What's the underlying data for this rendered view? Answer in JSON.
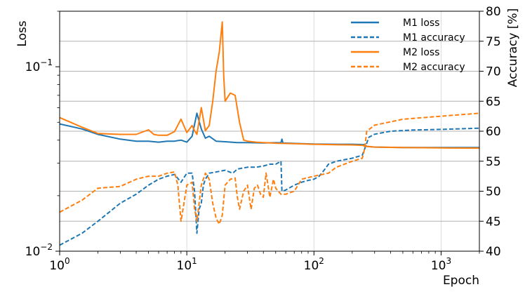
{
  "chart_data": {
    "type": "line",
    "xlabel": "Epoch",
    "ylabel_left": "Loss",
    "ylabel_right": "Accuracy [%]",
    "x_scale": "log",
    "y_left_scale": "log",
    "xlim": [
      1,
      2000
    ],
    "ylim_left": [
      0.01,
      0.2
    ],
    "ylim_right": [
      40,
      80
    ],
    "x_ticks": [
      {
        "value": 1,
        "base": "10",
        "exp": "0"
      },
      {
        "value": 10,
        "base": "10",
        "exp": "1"
      },
      {
        "value": 100,
        "base": "10",
        "exp": "2"
      },
      {
        "value": 1000,
        "base": "10",
        "exp": "3"
      }
    ],
    "y_left_ticks": [
      {
        "value": 0.01,
        "base": "10",
        "exp": "−2"
      },
      {
        "value": 0.1,
        "base": "10",
        "exp": "−1"
      }
    ],
    "y_right_ticks": [
      "40",
      "45",
      "50",
      "55",
      "60",
      "65",
      "70",
      "75",
      "80"
    ],
    "grid": true,
    "legend_position": "top-right",
    "colors": {
      "M1": "#1f77b4",
      "M2": "#ff7f0e"
    },
    "series": [
      {
        "name": "M1 loss",
        "axis": "left",
        "color": "#1f77b4",
        "style": "solid",
        "points": [
          [
            1,
            0.049
          ],
          [
            1.5,
            0.046
          ],
          [
            2,
            0.043
          ],
          [
            3,
            0.0405
          ],
          [
            4,
            0.0395
          ],
          [
            5,
            0.0395
          ],
          [
            6,
            0.039
          ],
          [
            7,
            0.0395
          ],
          [
            8,
            0.0395
          ],
          [
            9,
            0.04
          ],
          [
            10,
            0.039
          ],
          [
            11,
            0.042
          ],
          [
            12,
            0.056
          ],
          [
            13,
            0.046
          ],
          [
            14,
            0.041
          ],
          [
            15,
            0.042
          ],
          [
            17,
            0.0395
          ],
          [
            20,
            0.0392
          ],
          [
            25,
            0.0388
          ],
          [
            30,
            0.0388
          ],
          [
            40,
            0.0386
          ],
          [
            55,
            0.0388
          ],
          [
            56,
            0.0405
          ],
          [
            57,
            0.0386
          ],
          [
            80,
            0.0383
          ],
          [
            100,
            0.0381
          ],
          [
            150,
            0.038
          ],
          [
            200,
            0.038
          ],
          [
            250,
            0.0378
          ],
          [
            260,
            0.037
          ],
          [
            300,
            0.0367
          ],
          [
            500,
            0.0365
          ],
          [
            1000,
            0.0365
          ],
          [
            2000,
            0.0365
          ]
        ]
      },
      {
        "name": "M1 accuracy",
        "axis": "right",
        "color": "#1f77b4",
        "style": "dashed",
        "points": [
          [
            1,
            41
          ],
          [
            1.5,
            43
          ],
          [
            2,
            45
          ],
          [
            3,
            48
          ],
          [
            4,
            49.5
          ],
          [
            5,
            51
          ],
          [
            6,
            52
          ],
          [
            7,
            52.5
          ],
          [
            8,
            52.8
          ],
          [
            9,
            51.5
          ],
          [
            10,
            53
          ],
          [
            11,
            53
          ],
          [
            11.5,
            50
          ],
          [
            12,
            43
          ],
          [
            12.5,
            47
          ],
          [
            13,
            48
          ],
          [
            13.5,
            51
          ],
          [
            14,
            52
          ],
          [
            15,
            53
          ],
          [
            17,
            53.2
          ],
          [
            20,
            53.5
          ],
          [
            23,
            53
          ],
          [
            25,
            53.7
          ],
          [
            30,
            54
          ],
          [
            35,
            54
          ],
          [
            40,
            54.2
          ],
          [
            45,
            54.5
          ],
          [
            50,
            54.5
          ],
          [
            55,
            55
          ],
          [
            56,
            50
          ],
          [
            60,
            50.2
          ],
          [
            70,
            51
          ],
          [
            80,
            51.5
          ],
          [
            90,
            51.8
          ],
          [
            100,
            52
          ],
          [
            110,
            52.5
          ],
          [
            120,
            53.5
          ],
          [
            130,
            54.5
          ],
          [
            150,
            55
          ],
          [
            200,
            55.5
          ],
          [
            240,
            56
          ],
          [
            250,
            57
          ],
          [
            260,
            58
          ],
          [
            270,
            59
          ],
          [
            300,
            59.5
          ],
          [
            400,
            60
          ],
          [
            600,
            60.2
          ],
          [
            1000,
            60.3
          ],
          [
            2000,
            60.5
          ]
        ]
      },
      {
        "name": "M2 loss",
        "axis": "left",
        "color": "#ff7f0e",
        "style": "solid",
        "points": [
          [
            1,
            0.053
          ],
          [
            1.5,
            0.047
          ],
          [
            2,
            0.0435
          ],
          [
            3,
            0.043
          ],
          [
            4,
            0.043
          ],
          [
            5,
            0.0455
          ],
          [
            5.5,
            0.043
          ],
          [
            6,
            0.0425
          ],
          [
            7,
            0.0425
          ],
          [
            8,
            0.0445
          ],
          [
            9,
            0.052
          ],
          [
            10,
            0.044
          ],
          [
            11,
            0.048
          ],
          [
            11.5,
            0.045
          ],
          [
            12,
            0.043
          ],
          [
            13,
            0.06
          ],
          [
            14,
            0.045
          ],
          [
            15,
            0.048
          ],
          [
            16,
            0.065
          ],
          [
            17,
            0.095
          ],
          [
            18,
            0.12
          ],
          [
            19,
            0.175
          ],
          [
            19.5,
            0.09
          ],
          [
            20,
            0.065
          ],
          [
            22,
            0.072
          ],
          [
            24,
            0.07
          ],
          [
            26,
            0.05
          ],
          [
            28,
            0.04
          ],
          [
            30,
            0.0395
          ],
          [
            35,
            0.039
          ],
          [
            40,
            0.0388
          ],
          [
            50,
            0.0385
          ],
          [
            70,
            0.0383
          ],
          [
            100,
            0.038
          ],
          [
            150,
            0.0378
          ],
          [
            200,
            0.0377
          ],
          [
            240,
            0.0375
          ],
          [
            260,
            0.037
          ],
          [
            300,
            0.0367
          ],
          [
            500,
            0.0365
          ],
          [
            1000,
            0.0363
          ],
          [
            2000,
            0.0362
          ]
        ]
      },
      {
        "name": "M2 accuracy",
        "axis": "right",
        "color": "#ff7f0e",
        "style": "dashed",
        "points": [
          [
            1,
            46.5
          ],
          [
            1.5,
            48.5
          ],
          [
            2,
            50.5
          ],
          [
            3,
            50.8
          ],
          [
            4,
            52
          ],
          [
            5,
            52.5
          ],
          [
            6,
            52.5
          ],
          [
            7,
            53
          ],
          [
            8,
            53.2
          ],
          [
            8.5,
            51
          ],
          [
            9,
            45
          ],
          [
            9.5,
            48
          ],
          [
            10,
            51
          ],
          [
            11,
            51.5
          ],
          [
            11.5,
            47
          ],
          [
            12,
            45
          ],
          [
            12.5,
            48
          ],
          [
            13,
            51
          ],
          [
            14,
            53
          ],
          [
            15,
            52
          ],
          [
            16,
            48
          ],
          [
            17,
            45.5
          ],
          [
            18,
            44.5
          ],
          [
            19,
            46
          ],
          [
            20,
            51
          ],
          [
            22,
            52
          ],
          [
            24,
            52.2
          ],
          [
            25,
            49
          ],
          [
            26,
            47
          ],
          [
            28,
            50
          ],
          [
            30,
            51
          ],
          [
            32,
            47
          ],
          [
            34,
            50.5
          ],
          [
            36,
            51
          ],
          [
            38,
            49.5
          ],
          [
            40,
            49
          ],
          [
            42,
            53
          ],
          [
            45,
            49
          ],
          [
            48,
            52
          ],
          [
            50,
            50.5
          ],
          [
            55,
            49.5
          ],
          [
            60,
            49.5
          ],
          [
            70,
            50
          ],
          [
            80,
            52
          ],
          [
            100,
            52.5
          ],
          [
            130,
            53
          ],
          [
            150,
            54
          ],
          [
            200,
            55
          ],
          [
            240,
            55.5
          ],
          [
            250,
            57
          ],
          [
            260,
            60
          ],
          [
            300,
            61
          ],
          [
            500,
            62
          ],
          [
            1000,
            62.5
          ],
          [
            2000,
            63
          ]
        ]
      }
    ]
  }
}
